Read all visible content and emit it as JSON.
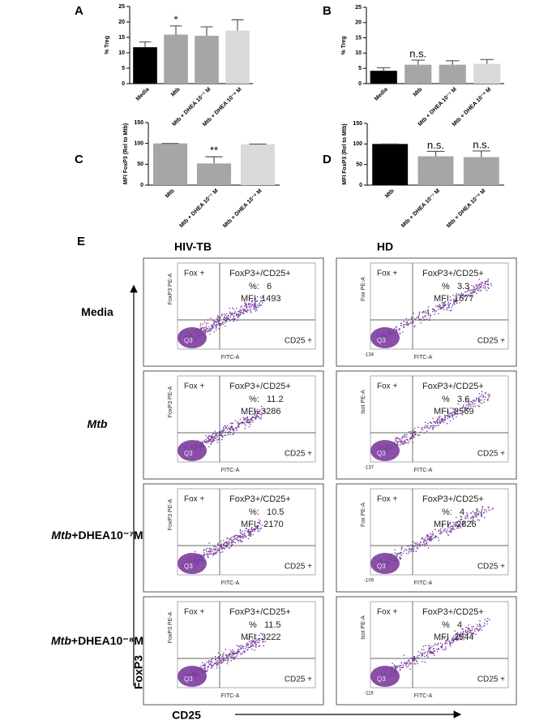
{
  "chart_data": [
    {
      "type": "bar",
      "panel": "A",
      "ylabel": "% Treg",
      "categories": [
        "Media",
        "Mtb",
        "Mtb + DHEA 10⁻⁷ M",
        "Mtb + DHEA 10⁻⁸ M"
      ],
      "values": [
        11.8,
        15.9,
        15.5,
        17.2
      ],
      "errors": [
        1.7,
        2.8,
        2.9,
        3.5
      ],
      "colors": [
        "#000000",
        "#a6a6a6",
        "#a6a6a6",
        "#d9d9d9"
      ],
      "significance": [
        null,
        "*",
        null,
        null
      ],
      "ylim": [
        0,
        25
      ],
      "yticks": [
        0,
        5,
        10,
        15,
        20,
        25
      ]
    },
    {
      "type": "bar",
      "panel": "B",
      "ylabel": "% Treg",
      "categories": [
        "Media",
        "Mtb",
        "Mtb + DHEA 10⁻⁷ M",
        "Mtb + DHEA 10⁻⁸ M"
      ],
      "values": [
        4.2,
        6.2,
        6.2,
        6.5
      ],
      "errors": [
        1.0,
        1.5,
        1.3,
        1.4
      ],
      "colors": [
        "#000000",
        "#a6a6a6",
        "#a6a6a6",
        "#d9d9d9"
      ],
      "significance": [
        null,
        "n.s.",
        null,
        null
      ],
      "ylim": [
        0,
        25
      ],
      "yticks": [
        0,
        5,
        10,
        15,
        20,
        25
      ]
    },
    {
      "type": "bar",
      "panel": "C",
      "ylabel": "MFI FoxP3 (Rel to Mtb)",
      "categories": [
        "Mtb",
        "Mtb + DHEA 10⁻⁷ M",
        "Mtb + DHEA 10⁻⁸ M"
      ],
      "values": [
        100,
        52,
        98
      ],
      "errors": [
        0,
        16,
        0.5
      ],
      "colors": [
        "#a6a6a6",
        "#a6a6a6",
        "#d9d9d9"
      ],
      "significance": [
        null,
        "**",
        null
      ],
      "ylim": [
        0,
        150
      ],
      "yticks": [
        0,
        50,
        100,
        150
      ]
    },
    {
      "type": "bar",
      "panel": "D",
      "ylabel": "MFI FoxP3 (Rel to Mtb)",
      "categories": [
        "Mtb",
        "Mtb + DHEA 10⁻⁷ M",
        "Mtb + DHEA 10⁻⁸ M"
      ],
      "values": [
        100,
        70,
        68
      ],
      "errors": [
        0,
        12,
        15
      ],
      "colors": [
        "#000000",
        "#a6a6a6",
        "#a6a6a6"
      ],
      "significance": [
        null,
        "n.s.",
        "n.s."
      ],
      "ylim": [
        0,
        150
      ],
      "yticks": [
        0,
        50,
        100,
        150
      ]
    }
  ],
  "panel_e": {
    "panel": "E",
    "columns": [
      "HIV-TB",
      "HD"
    ],
    "rows": [
      {
        "italic": null,
        "rest": "Media"
      },
      {
        "italic": "Mtb",
        "rest": null
      },
      {
        "italic": "Mtb",
        "rest": "+DHEA10⁻⁷M"
      },
      {
        "italic": "Mtb",
        "rest": "+DHEA10⁻⁸M"
      }
    ],
    "y_axis": "FoxP3",
    "x_axis": "CD25",
    "plots": [
      [
        {
          "y_label": "FoxP3 PE-A",
          "x_label": "FITC-A",
          "fox": "Fox +",
          "gate": "FoxP3+/CD25+",
          "pct": "%:   6",
          "mfi": "MFI: 1493",
          "cd25": "CD25 +",
          "q3": "Q3",
          "x_min": null
        },
        {
          "y_label": "Fox PE-A",
          "x_label": "FITC-A",
          "fox": "Fox +",
          "gate": "FoxP3+/CD25+",
          "pct": "%   3.3",
          "mfi": "MFI: 1677",
          "cd25": "CD25 +",
          "q3": "Q3",
          "x_min": "-134"
        }
      ],
      [
        {
          "y_label": "FoxP3 PE-A",
          "x_label": "FITC-A",
          "fox": "Fox +",
          "gate": "FoxP3+/CD25+",
          "pct": "%:   11.2",
          "mfi": "MFI: 3286",
          "cd25": "CD25 +",
          "q3": "Q3",
          "x_min": null
        },
        {
          "y_label": "Isot PE-A",
          "x_label": "FITC-A",
          "fox": "Fox +",
          "gate": "FoxP3+/CD25+",
          "pct": "%   3.6",
          "mfi": "MFI  2569",
          "cd25": "CD25 +",
          "q3": "Q3",
          "x_min": "-137"
        }
      ],
      [
        {
          "y_label": "FoxP3 PE-A",
          "x_label": "FITC-A",
          "fox": "Fox +",
          "gate": "FoxP3+/CD25+",
          "pct": "%:   10.5",
          "mfi": "MFI:  2170",
          "cd25": "CD25 +",
          "q3": "Q3",
          "x_min": null
        },
        {
          "y_label": "Fox PE-A",
          "x_label": "FITC-A",
          "fox": "Fox +",
          "gate": "FoxP3+/CD25+",
          "pct": "%:   4",
          "mfi": "MFI:  2826",
          "cd25": "CD25 +",
          "q3": "Q3",
          "x_min": "-109"
        }
      ],
      [
        {
          "y_label": "FoxP3 PE-A",
          "x_label": "FITC-A",
          "fox": "Fox +",
          "gate": "FoxP3+/CD25+",
          "pct": "%   11.5",
          "mfi": "MFI  3222",
          "cd25": "CD25 +",
          "q3": "Q3",
          "x_min": null
        },
        {
          "y_label": "Isot PE-A",
          "x_label": "FITC-A",
          "fox": "Fox +",
          "gate": "FoxP3+/CD25+",
          "pct": "%   4",
          "mfi": "MFI  2944",
          "cd25": "CD25 +",
          "q3": "Q3",
          "x_min": "-116"
        }
      ]
    ]
  }
}
